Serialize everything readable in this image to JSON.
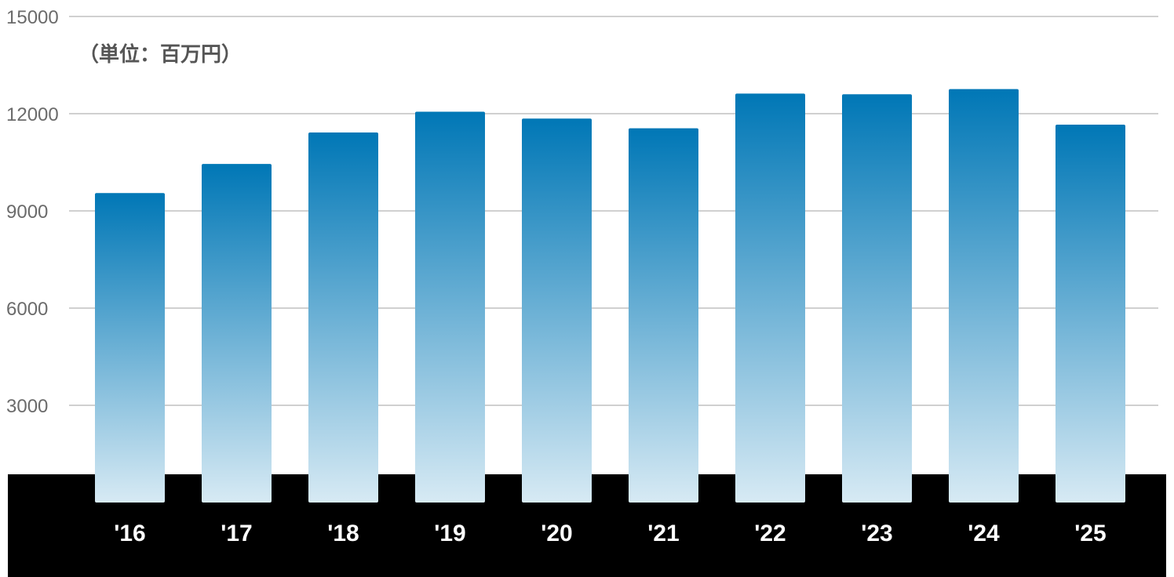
{
  "chart_data": {
    "type": "bar",
    "unit_note": "（単位：百万円）",
    "categories": [
      "'16",
      "'17",
      "'18",
      "'19",
      "'20",
      "'21",
      "'22",
      "'23",
      "'24",
      "'25"
    ],
    "values": [
      9550,
      10450,
      11420,
      12060,
      11850,
      11550,
      12620,
      12600,
      12760,
      11660
    ],
    "yticks": [
      3000,
      6000,
      9000,
      12000,
      15000
    ],
    "ylim": [
      0,
      15000
    ],
    "grid": true,
    "colors": {
      "bar_top": "#0077b6",
      "bar_bottom": "#d7eaf4",
      "grid": "#d0d0d0",
      "tick_text": "#6b6b6b",
      "band": "#000000",
      "category_text": "#ffffff"
    }
  }
}
